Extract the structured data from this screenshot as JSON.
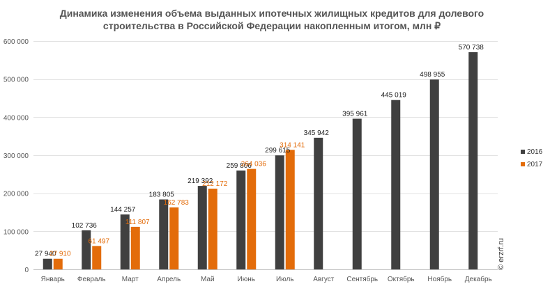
{
  "chart_data": {
    "type": "bar",
    "title_line1": "Динамика изменения объема выданных ипотечных жилищных кредитов для долевого",
    "title_line2": "строительства  в Российской  Федерации накопленным итогом, млн ₽",
    "xlabel": "",
    "ylabel": "",
    "ylim": [
      0,
      600000
    ],
    "yticks": [
      0,
      100000,
      200000,
      300000,
      400000,
      500000,
      600000
    ],
    "ytick_labels": [
      "0",
      "100 000",
      "200 000",
      "300 000",
      "400 000",
      "500 000",
      "600 000"
    ],
    "grid": true,
    "legend_position": "right",
    "categories": [
      "Январь",
      "Февраль",
      "Март",
      "Апрель",
      "Май",
      "Июнь",
      "Июль",
      "Август",
      "Сентябрь",
      "Октябрь",
      "Ноябрь",
      "Декабрь"
    ],
    "series": [
      {
        "name": "2016",
        "color": "#404040",
        "values": [
          27940,
          102736,
          144257,
          183805,
          219392,
          259806,
          299615,
          345942,
          395961,
          445019,
          498955,
          570738
        ],
        "labels": [
          "27 940",
          "102 736",
          "144 257",
          "183 805",
          "219 392",
          "259 806",
          "299 615",
          "345 942",
          "395 961",
          "445 019",
          "498 955",
          "570 738"
        ]
      },
      {
        "name": "2017",
        "color": "#E36C0A",
        "values": [
          27910,
          61497,
          111807,
          162783,
          212172,
          264036,
          314141,
          null,
          null,
          null,
          null,
          null
        ],
        "labels": [
          "27 910",
          "61 497",
          "111 807",
          "162 783",
          "212 172",
          "264 036",
          "314 141",
          null,
          null,
          null,
          null,
          null
        ]
      }
    ]
  },
  "copyright": "© erzrf.ru"
}
